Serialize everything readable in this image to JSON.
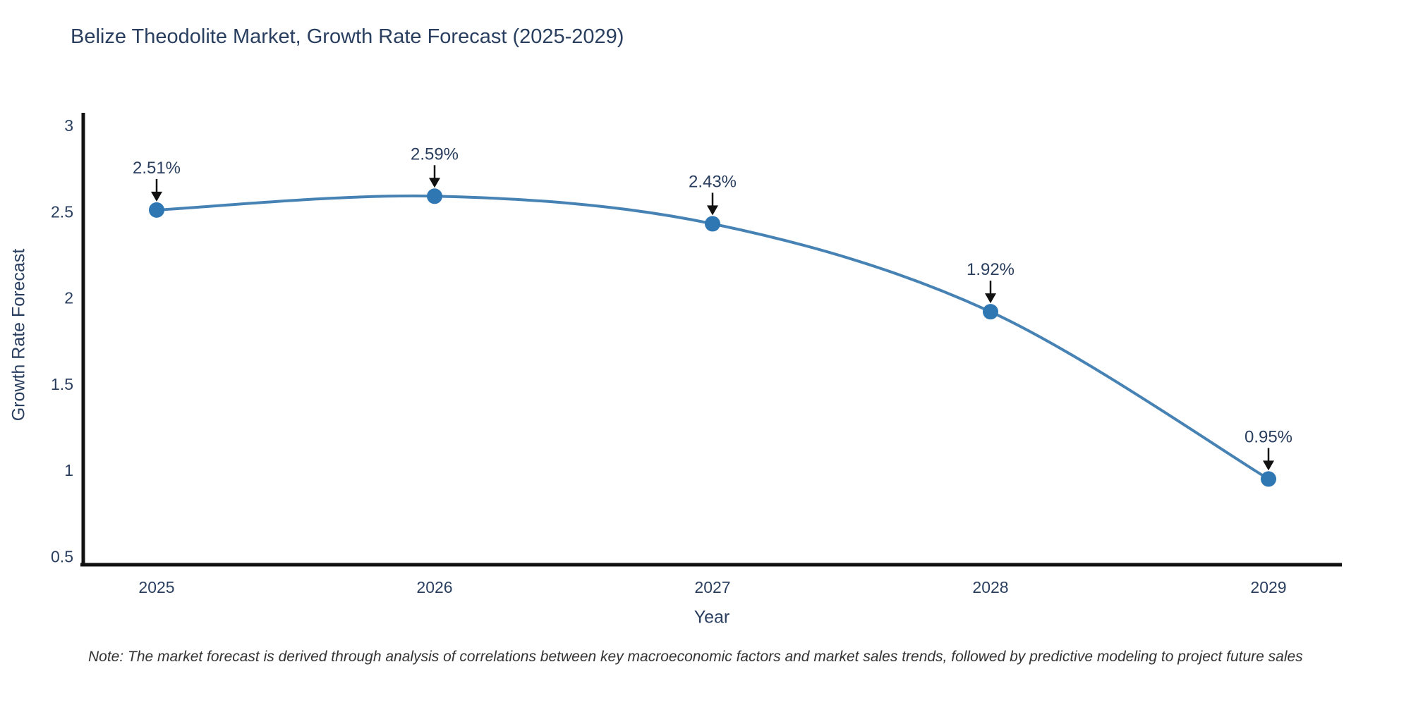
{
  "chart_data": {
    "type": "line",
    "title": "Belize Theodolite Market, Growth Rate Forecast (2025-2029)",
    "categories": [
      "2025",
      "2026",
      "2027",
      "2028",
      "2029"
    ],
    "values": [
      2.51,
      2.59,
      2.43,
      1.92,
      0.95
    ],
    "point_labels": [
      "2.51%",
      "2.59%",
      "2.43%",
      "1.92%",
      "0.95%"
    ],
    "xlabel": "Year",
    "ylabel": "Growth Rate Forecast",
    "ylim": [
      0.45,
      3.07
    ],
    "yticks": [
      0.5,
      1,
      1.5,
      2,
      2.5,
      3
    ],
    "ytick_labels": [
      "0.5",
      "1",
      "1.5",
      "2",
      "2.5",
      "3"
    ],
    "grid": false,
    "legend": "none",
    "curve": "spline",
    "line_color": "#4682b4",
    "marker_color": "#2e77b3",
    "axis_color": "#111111",
    "text_color": "#2a3f5f",
    "annotation_color": "#111111"
  },
  "note": "Note: The market forecast is derived through analysis of correlations between key macroeconomic factors and market sales trends, followed by predictive modeling to project future sales"
}
